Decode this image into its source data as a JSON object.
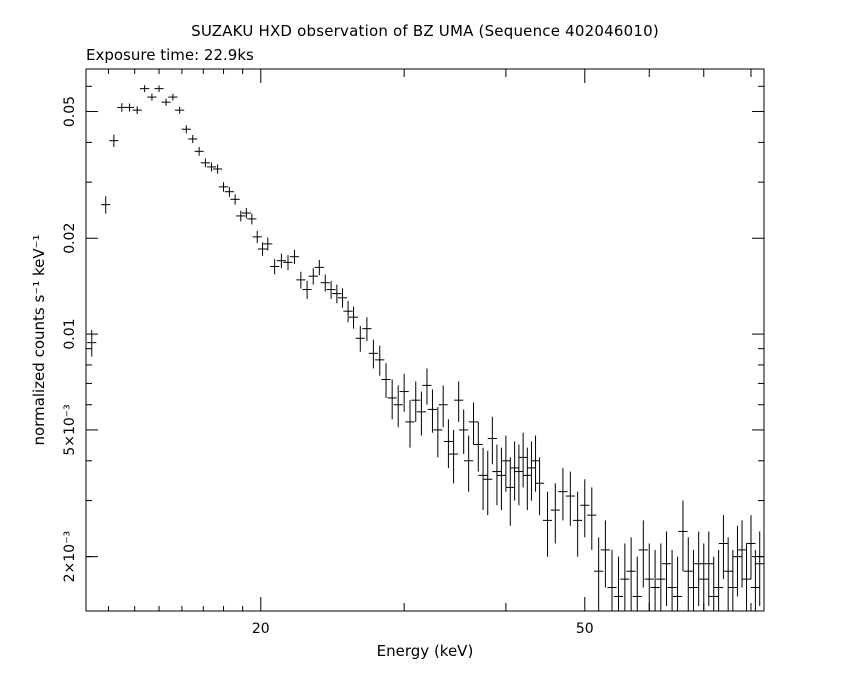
{
  "chart_data": {
    "type": "scatter",
    "title": "SUZAKU HXD observation of BZ UMA (Sequence 402046010)",
    "subtitle": "Exposure time: 22.9ks",
    "xlabel": "Energy (keV)",
    "ylabel": "normalized counts s⁻¹ keV⁻¹",
    "xscale": "log",
    "yscale": "log",
    "xlim": [
      12.2,
      83
    ],
    "ylim": [
      0.00135,
      0.068
    ],
    "x_ticks": [
      {
        "value": 20,
        "label": "20"
      },
      {
        "value": 50,
        "label": "50"
      }
    ],
    "y_ticks": [
      {
        "value": 0.002,
        "label": "2×10⁻³"
      },
      {
        "value": 0.005,
        "label": "5×10⁻³"
      },
      {
        "value": 0.01,
        "label": "0.01"
      },
      {
        "value": 0.02,
        "label": "0.02"
      },
      {
        "value": 0.05,
        "label": "0.05"
      }
    ],
    "series": [
      {
        "x": [
          12.4,
          12.9,
          13.2,
          13.5,
          13.8,
          14.1,
          14.4,
          14.7,
          15.0,
          15.3,
          15.6,
          15.9,
          16.2,
          16.5,
          16.8,
          17.1,
          17.4,
          17.7,
          18.0,
          18.3,
          18.6,
          18.9,
          19.2,
          19.5,
          19.8,
          20.1,
          20.4,
          20.8,
          21.2,
          21.6,
          22.0,
          22.4,
          22.8,
          23.2,
          23.6,
          24.0,
          24.4,
          24.8,
          25.2,
          25.6,
          26.0,
          26.5,
          27.0,
          27.5,
          28.0,
          28.5,
          29.0,
          29.5,
          30.0,
          30.5,
          31.0,
          31.5,
          32.0,
          32.5,
          33.0,
          33.5,
          34.0,
          34.5,
          35.0,
          35.5,
          36.0,
          36.5,
          37.0,
          37.5,
          38.0,
          38.5,
          39.0,
          39.5,
          40.0,
          40.5,
          41.0,
          41.5,
          42.0,
          42.5,
          43.0,
          43.5,
          44.0,
          45.0,
          46.0,
          47.0,
          48.0,
          49.0,
          50.0,
          51.0,
          52.0,
          53.0,
          54.0,
          55.0,
          56.0,
          57.0,
          58.0,
          59.0,
          60.0,
          61.0,
          62.0,
          63.0,
          64.0,
          65.0,
          66.0,
          67.0,
          68.0,
          69.0,
          70.0,
          71.0,
          72.0,
          73.0,
          74.0,
          75.0,
          76.0,
          77.0,
          78.0,
          79.0,
          80.0,
          81.0,
          82.0
        ],
        "y": [
          0.0094,
          0.0255,
          0.0405,
          0.0515,
          0.0515,
          0.0505,
          0.059,
          0.0555,
          0.059,
          0.0535,
          0.0555,
          0.0505,
          0.044,
          0.041,
          0.0375,
          0.0345,
          0.0335,
          0.033,
          0.029,
          0.028,
          0.0265,
          0.0235,
          0.024,
          0.023,
          0.0202,
          0.0185,
          0.0192,
          0.0163,
          0.017,
          0.0168,
          0.0175,
          0.0148,
          0.0138,
          0.0152,
          0.0162,
          0.0145,
          0.0138,
          0.0134,
          0.013,
          0.0118,
          0.0113,
          0.0097,
          0.0104,
          0.0087,
          0.0083,
          0.0072,
          0.0063,
          0.006,
          0.0066,
          0.0053,
          0.0062,
          0.0057,
          0.0069,
          0.0058,
          0.005,
          0.006,
          0.0046,
          0.0042,
          0.0062,
          0.005,
          0.004,
          0.0053,
          0.0045,
          0.0036,
          0.0035,
          0.0047,
          0.0037,
          0.0036,
          0.004,
          0.0033,
          0.0038,
          0.0037,
          0.0041,
          0.0036,
          0.0038,
          0.004,
          0.0034,
          0.0026,
          0.0028,
          0.0032,
          0.0031,
          0.0026,
          0.0029,
          0.0027,
          0.0018,
          0.0021,
          0.0016,
          0.0015,
          0.0017,
          0.0018,
          0.0015,
          0.0021,
          0.0017,
          0.0016,
          0.0017,
          0.0019,
          0.0016,
          0.0015,
          0.0024,
          0.0018,
          0.0016,
          0.0019,
          0.0017,
          0.0019,
          0.0015,
          0.0016,
          0.0022,
          0.0018,
          0.0016,
          0.002,
          0.0021,
          0.0017,
          0.0022,
          0.0016,
          0.0019
        ],
        "yerr": [
          0.0009,
          0.0016,
          0.0018,
          0.0016,
          0.0015,
          0.0014,
          0.0015,
          0.0014,
          0.0014,
          0.0014,
          0.0014,
          0.0013,
          0.0013,
          0.0012,
          0.0012,
          0.0011,
          0.0011,
          0.0011,
          0.001,
          0.001,
          0.001,
          0.0009,
          0.0009,
          0.0009,
          0.0009,
          0.0009,
          0.0009,
          0.0009,
          0.0009,
          0.0009,
          0.0009,
          0.0009,
          0.0009,
          0.0009,
          0.0009,
          0.0009,
          0.0009,
          0.0009,
          0.0009,
          0.0009,
          0.0009,
          0.0009,
          0.0009,
          0.0009,
          0.0009,
          0.0009,
          0.0009,
          0.0009,
          0.0009,
          0.0009,
          0.0009,
          0.0009,
          0.0009,
          0.0009,
          0.0009,
          0.0009,
          0.0008,
          0.0008,
          0.0009,
          0.0008,
          0.0008,
          0.0008,
          0.0008,
          0.0008,
          0.0008,
          0.0008,
          0.0008,
          0.0008,
          0.0008,
          0.0008,
          0.0008,
          0.0008,
          0.0008,
          0.0008,
          0.0008,
          0.0008,
          0.0007,
          0.0006,
          0.0006,
          0.0006,
          0.0006,
          0.0006,
          0.0006,
          0.0006,
          0.0005,
          0.0005,
          0.0005,
          0.0005,
          0.0005,
          0.0005,
          0.0005,
          0.0005,
          0.0005,
          0.0005,
          0.0005,
          0.0005,
          0.0005,
          0.0005,
          0.0006,
          0.0005,
          0.0005,
          0.0005,
          0.0005,
          0.0005,
          0.0005,
          0.0005,
          0.0005,
          0.0005,
          0.0005,
          0.0005,
          0.0005,
          0.0005,
          0.0005,
          0.0005,
          0.0005
        ],
        "xerr_rel": 0.013,
        "color": "#000000"
      }
    ],
    "grid": false,
    "legend": "none"
  }
}
